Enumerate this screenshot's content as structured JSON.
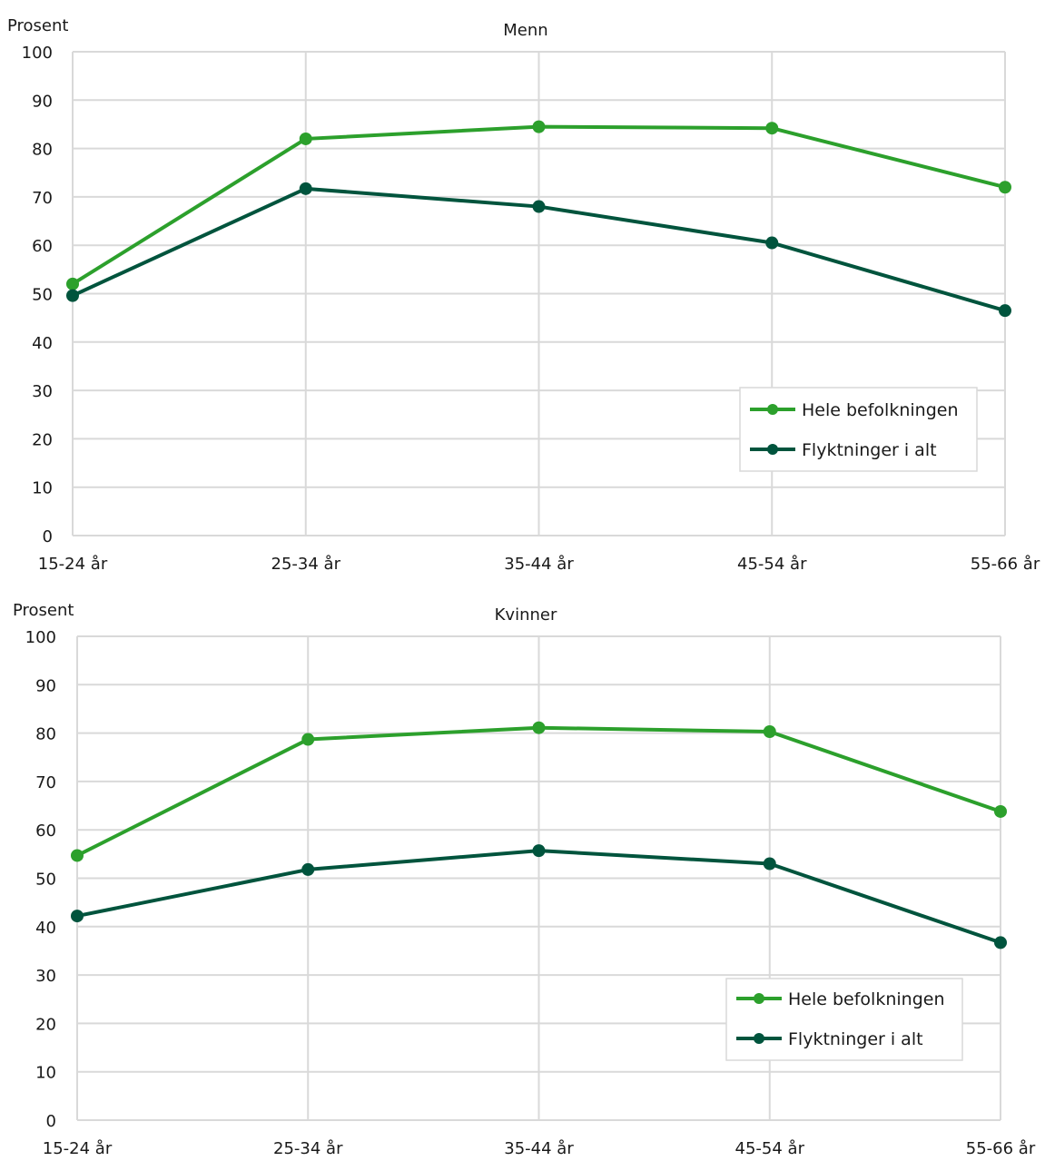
{
  "colors": {
    "hele": "#2ca02c",
    "flykt": "#00543d",
    "grid": "#d9d9d9"
  },
  "chart_data": [
    {
      "type": "line",
      "title": "Menn",
      "ylabel": "Prosent",
      "ylim": [
        0,
        100
      ],
      "yticks": [
        "0",
        "10",
        "20",
        "30",
        "40",
        "50",
        "60",
        "70",
        "80",
        "90",
        "100"
      ],
      "categories": [
        "15-24 år",
        "25-34 år",
        "35-44 år",
        "45-54 år",
        "55-66 år"
      ],
      "grid": true,
      "legend_position": "bottom-right",
      "series": [
        {
          "name": "Hele befolkningen",
          "values": [
            52,
            82,
            84.5,
            84.2,
            72
          ]
        },
        {
          "name": "Flyktninger i alt",
          "values": [
            49.6,
            71.7,
            68,
            60.5,
            46.5
          ]
        }
      ]
    },
    {
      "type": "line",
      "title": "Kvinner",
      "ylabel": "Prosent",
      "ylim": [
        0,
        100
      ],
      "yticks": [
        "0",
        "10",
        "20",
        "30",
        "40",
        "50",
        "60",
        "70",
        "80",
        "90",
        "100"
      ],
      "categories": [
        "15-24 år",
        "25-34 år",
        "35-44 år",
        "45-54 år",
        "55-66 år"
      ],
      "grid": true,
      "legend_position": "bottom-right",
      "series": [
        {
          "name": "Hele befolkningen",
          "values": [
            54.7,
            78.7,
            81.1,
            80.3,
            63.8
          ]
        },
        {
          "name": "Flyktninger i alt",
          "values": [
            42.2,
            51.8,
            55.7,
            53,
            36.7
          ]
        }
      ]
    }
  ]
}
